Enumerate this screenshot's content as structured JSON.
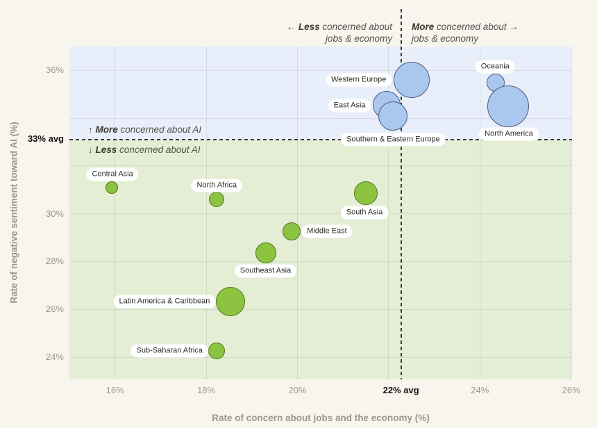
{
  "page": {
    "background": "#f8f5ee"
  },
  "chart_data": {
    "type": "scatter",
    "title": "",
    "xlabel": "Rate of concern about jobs and the economy (%)",
    "ylabel": "Rate of negative sentiment toward AI (%)",
    "xlim": [
      15,
      26.02
    ],
    "ylim": [
      23.07,
      37
    ],
    "grid": true,
    "legend": "none",
    "x_ticks": [
      {
        "value": 16,
        "label": "16%"
      },
      {
        "value": 18,
        "label": "18%"
      },
      {
        "value": 20,
        "label": "20%"
      },
      {
        "value": 24,
        "label": "24%"
      },
      {
        "value": 26,
        "label": "26%"
      }
    ],
    "y_ticks": [
      {
        "value": 36,
        "label": "36%"
      },
      {
        "value": 30,
        "label": "30%"
      },
      {
        "value": 28,
        "label": "28%"
      },
      {
        "value": 26,
        "label": "26%"
      },
      {
        "value": 24,
        "label": "24%"
      }
    ],
    "x_gridlines": [
      16,
      18,
      20,
      22,
      24,
      26
    ],
    "y_gridlines": [
      36,
      34,
      32,
      30,
      28,
      26,
      24
    ],
    "x_average": {
      "value": 22.27,
      "label": "22% avg"
    },
    "y_average": {
      "value": 33.1,
      "label": "33% avg"
    },
    "zones": {
      "above": {
        "color": "#e9effa",
        "annotation": {
          "arrow": "↑",
          "bold": "More",
          "rest": " concerned about AI"
        }
      },
      "below": {
        "color": "#e4eed4",
        "annotation": {
          "arrow": "↓",
          "bold": "Less",
          "rest": " concerned about AI"
        }
      }
    },
    "quadrant_headers": {
      "left": {
        "arrow": "←",
        "bold": "Less",
        "rest": " concerned about",
        "line2": "jobs & economy"
      },
      "right": {
        "bold": "More",
        "rest": " concerned about",
        "arrow": "→",
        "line2": "jobs & economy"
      }
    },
    "series": [
      {
        "name": "More concerned about AI",
        "fill": "#aac7ee",
        "stroke": "#4d5a78",
        "points": [
          {
            "region": "Western Europe",
            "x": 22.5,
            "y": 35.6,
            "r": 26,
            "label_dx": -76,
            "label_dy": 0
          },
          {
            "region": "East Asia",
            "x": 21.95,
            "y": 34.55,
            "r": 20,
            "label_dx": -53,
            "label_dy": 1
          },
          {
            "region": "Southern & Eastern Europe",
            "x": 22.1,
            "y": 34.1,
            "r": 21,
            "label_dx": 0,
            "label_dy": 34
          },
          {
            "region": "Oceania",
            "x": 24.35,
            "y": 35.5,
            "r": 13,
            "label_dx": -1,
            "label_dy": -23
          },
          {
            "region": "North America",
            "x": 24.62,
            "y": 34.5,
            "r": 30,
            "label_dx": 1,
            "label_dy": 40
          }
        ]
      },
      {
        "name": "Less concerned about AI",
        "fill": "#8cc442",
        "stroke": "#53751d",
        "points": [
          {
            "region": "Central Asia",
            "x": 15.93,
            "y": 31.1,
            "r": 9,
            "label_dx": 1,
            "label_dy": -19
          },
          {
            "region": "North Africa",
            "x": 18.23,
            "y": 30.6,
            "r": 11,
            "label_dx": 0,
            "label_dy": -20
          },
          {
            "region": "South Asia",
            "x": 21.5,
            "y": 30.85,
            "r": 17,
            "label_dx": -2,
            "label_dy": 28
          },
          {
            "region": "Middle East",
            "x": 19.87,
            "y": 29.25,
            "r": 13,
            "label_dx": 51,
            "label_dy": 0
          },
          {
            "region": "Southeast Asia",
            "x": 19.3,
            "y": 28.35,
            "r": 15,
            "label_dx": 0,
            "label_dy": 26
          },
          {
            "region": "Latin America & Caribbean",
            "x": 18.53,
            "y": 26.33,
            "r": 21,
            "label_dx": -95,
            "label_dy": 0
          },
          {
            "region": "Sub-Saharan Africa",
            "x": 18.23,
            "y": 24.25,
            "r": 12,
            "label_dx": -68,
            "label_dy": 0
          }
        ]
      }
    ]
  }
}
